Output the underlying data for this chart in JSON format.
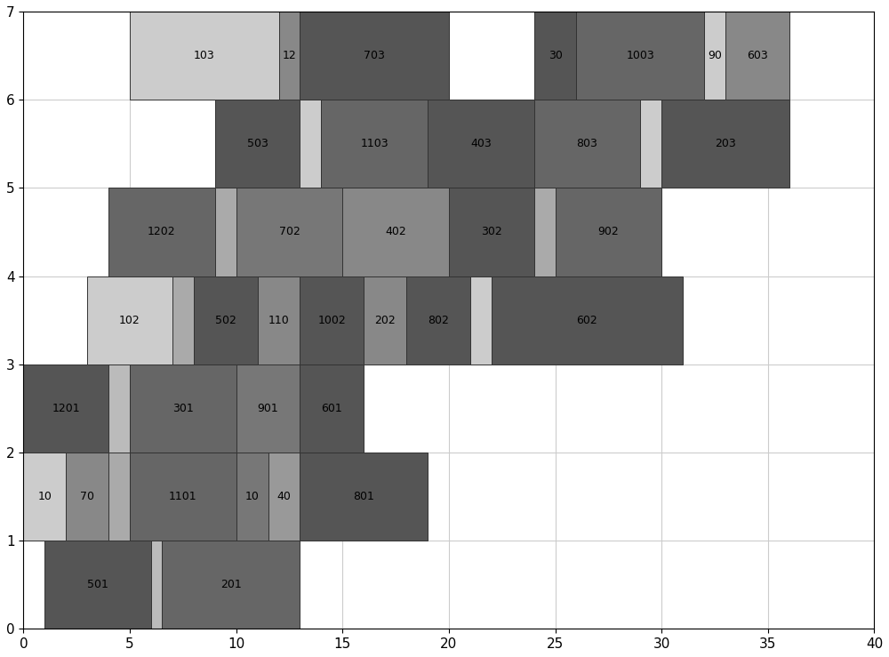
{
  "xlim": [
    0,
    40
  ],
  "ylim": [
    0,
    7
  ],
  "xticks": [
    0,
    5,
    10,
    15,
    20,
    25,
    30,
    35,
    40
  ],
  "yticks": [
    0,
    1,
    2,
    3,
    4,
    5,
    6,
    7
  ],
  "bars": [
    {
      "machine": 1,
      "start": 1,
      "duration": 5,
      "label": "501",
      "color": "#555555"
    },
    {
      "machine": 1,
      "start": 6,
      "duration": 0.5,
      "label": "",
      "color": "#bbbbbb"
    },
    {
      "machine": 1,
      "start": 6.5,
      "duration": 6.5,
      "label": "201",
      "color": "#666666"
    },
    {
      "machine": 2,
      "start": 0,
      "duration": 2,
      "label": "10",
      "color": "#cccccc"
    },
    {
      "machine": 2,
      "start": 2,
      "duration": 2,
      "label": "70",
      "color": "#888888"
    },
    {
      "machine": 2,
      "start": 4,
      "duration": 1,
      "label": "",
      "color": "#aaaaaa"
    },
    {
      "machine": 2,
      "start": 5,
      "duration": 5,
      "label": "1101",
      "color": "#666666"
    },
    {
      "machine": 2,
      "start": 10,
      "duration": 1.5,
      "label": "10",
      "color": "#777777"
    },
    {
      "machine": 2,
      "start": 11.5,
      "duration": 1.5,
      "label": "40",
      "color": "#999999"
    },
    {
      "machine": 2,
      "start": 13,
      "duration": 6,
      "label": "801",
      "color": "#555555"
    },
    {
      "machine": 3,
      "start": 0,
      "duration": 4,
      "label": "1201",
      "color": "#555555"
    },
    {
      "machine": 3,
      "start": 4,
      "duration": 1,
      "label": "",
      "color": "#bbbbbb"
    },
    {
      "machine": 3,
      "start": 5,
      "duration": 5,
      "label": "301",
      "color": "#666666"
    },
    {
      "machine": 3,
      "start": 10,
      "duration": 3,
      "label": "901",
      "color": "#777777"
    },
    {
      "machine": 3,
      "start": 13,
      "duration": 3,
      "label": "601",
      "color": "#555555"
    },
    {
      "machine": 4,
      "start": 3,
      "duration": 4,
      "label": "102",
      "color": "#cccccc"
    },
    {
      "machine": 4,
      "start": 7,
      "duration": 1,
      "label": "",
      "color": "#aaaaaa"
    },
    {
      "machine": 4,
      "start": 8,
      "duration": 3,
      "label": "502",
      "color": "#555555"
    },
    {
      "machine": 4,
      "start": 11,
      "duration": 2,
      "label": "110",
      "color": "#888888"
    },
    {
      "machine": 4,
      "start": 13,
      "duration": 3,
      "label": "1002",
      "color": "#555555"
    },
    {
      "machine": 4,
      "start": 16,
      "duration": 2,
      "label": "202",
      "color": "#888888"
    },
    {
      "machine": 4,
      "start": 18,
      "duration": 3,
      "label": "802",
      "color": "#555555"
    },
    {
      "machine": 4,
      "start": 21,
      "duration": 1,
      "label": "",
      "color": "#cccccc"
    },
    {
      "machine": 4,
      "start": 22,
      "duration": 9,
      "label": "602",
      "color": "#555555"
    },
    {
      "machine": 5,
      "start": 4,
      "duration": 5,
      "label": "1202",
      "color": "#666666"
    },
    {
      "machine": 5,
      "start": 9,
      "duration": 1,
      "label": "",
      "color": "#aaaaaa"
    },
    {
      "machine": 5,
      "start": 10,
      "duration": 5,
      "label": "702",
      "color": "#777777"
    },
    {
      "machine": 5,
      "start": 15,
      "duration": 5,
      "label": "402",
      "color": "#888888"
    },
    {
      "machine": 5,
      "start": 20,
      "duration": 4,
      "label": "302",
      "color": "#555555"
    },
    {
      "machine": 5,
      "start": 24,
      "duration": 1,
      "label": "",
      "color": "#aaaaaa"
    },
    {
      "machine": 5,
      "start": 25,
      "duration": 5,
      "label": "902",
      "color": "#666666"
    },
    {
      "machine": 6,
      "start": 9,
      "duration": 4,
      "label": "503",
      "color": "#555555"
    },
    {
      "machine": 6,
      "start": 13,
      "duration": 1,
      "label": "",
      "color": "#cccccc"
    },
    {
      "machine": 6,
      "start": 14,
      "duration": 5,
      "label": "1103",
      "color": "#666666"
    },
    {
      "machine": 6,
      "start": 19,
      "duration": 5,
      "label": "403",
      "color": "#555555"
    },
    {
      "machine": 6,
      "start": 24,
      "duration": 5,
      "label": "803",
      "color": "#666666"
    },
    {
      "machine": 6,
      "start": 29,
      "duration": 1,
      "label": "",
      "color": "#cccccc"
    },
    {
      "machine": 6,
      "start": 30,
      "duration": 6,
      "label": "203",
      "color": "#555555"
    },
    {
      "machine": 7,
      "start": 5,
      "duration": 7,
      "label": "103",
      "color": "#cccccc"
    },
    {
      "machine": 7,
      "start": 12,
      "duration": 1,
      "label": "12",
      "color": "#888888"
    },
    {
      "machine": 7,
      "start": 13,
      "duration": 7,
      "label": "703",
      "color": "#555555"
    },
    {
      "machine": 7,
      "start": 24,
      "duration": 2,
      "label": "30",
      "color": "#555555"
    },
    {
      "machine": 7,
      "start": 26,
      "duration": 6,
      "label": "1003",
      "color": "#666666"
    },
    {
      "machine": 7,
      "start": 32,
      "duration": 1,
      "label": "90",
      "color": "#cccccc"
    },
    {
      "machine": 7,
      "start": 33,
      "duration": 3,
      "label": "603",
      "color": "#888888"
    }
  ],
  "bar_height": 1.0,
  "edge_color": "#333333",
  "text_color": "#000000",
  "text_fontsize": 9,
  "grid_color": "#cccccc",
  "background_color": "#ffffff",
  "fig_width": 10.0,
  "fig_height": 7.39
}
